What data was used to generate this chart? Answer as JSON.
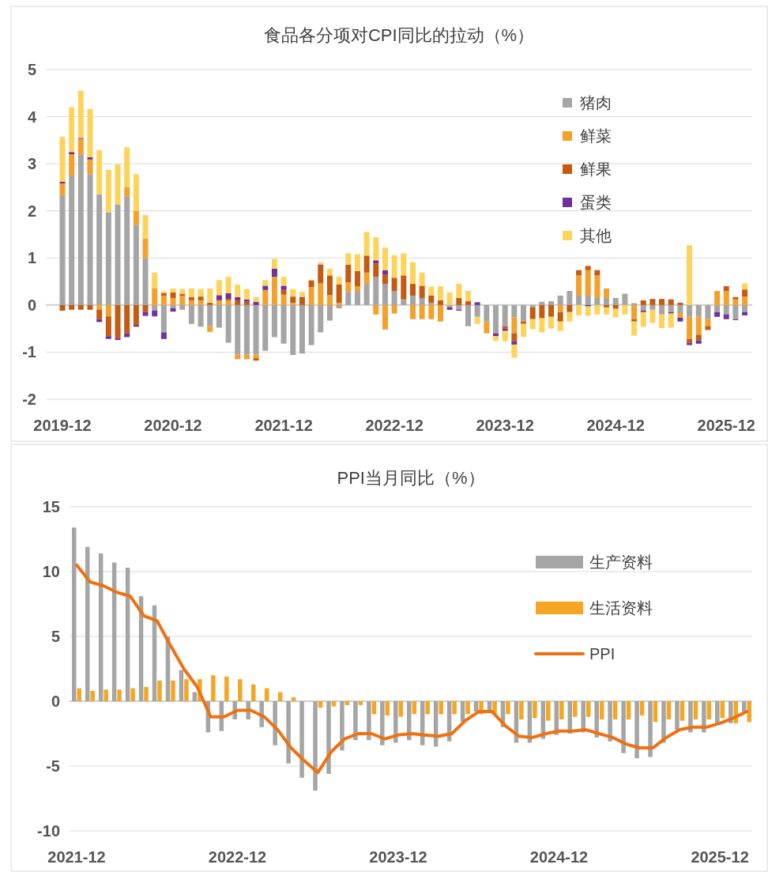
{
  "chart_data": [
    {
      "type": "bar",
      "title": "食品各分项对CPI同比的拉动（%）",
      "stacked": true,
      "grid": "y",
      "legend": "top right",
      "categories": [
        "2019-12",
        null,
        null,
        null,
        null,
        null,
        null,
        null,
        null,
        null,
        null,
        null,
        "2020-12",
        null,
        null,
        null,
        null,
        null,
        null,
        null,
        null,
        null,
        null,
        null,
        "2021-12",
        null,
        null,
        null,
        null,
        null,
        null,
        null,
        null,
        null,
        null,
        null,
        "2022-12",
        null,
        null,
        null,
        null,
        null,
        null,
        null,
        null,
        null,
        null,
        null,
        "2023-12",
        null,
        null,
        null,
        null,
        null,
        null,
        null,
        null,
        null,
        null,
        null,
        "2024-12",
        null,
        null,
        null,
        null,
        null,
        null,
        null,
        null,
        null,
        null,
        null,
        "2025-12",
        null,
        null
      ],
      "ylim": [
        -2,
        5
      ],
      "yticks": [
        -2,
        -1,
        0,
        1,
        2,
        3,
        4,
        5
      ],
      "series": [
        {
          "name": "猪肉",
          "color": "#a5a5a5",
          "values": [
            2.33,
            2.75,
            3.2,
            2.78,
            2.35,
            1.97,
            2.13,
            2.3,
            1.7,
            1.0,
            -0.12,
            -0.58,
            -0.07,
            -0.1,
            -0.4,
            -0.46,
            -0.45,
            -0.48,
            -0.8,
            -1.05,
            -1.05,
            -1.05,
            -0.97,
            -0.68,
            -0.82,
            -1.06,
            -1.03,
            -0.85,
            -0.58,
            -0.33,
            -0.07,
            0.28,
            0.3,
            0.45,
            0.6,
            0.45,
            0.3,
            0.12,
            0.2,
            0.15,
            0.05,
            0,
            -0.05,
            -0.1,
            -0.45,
            -0.25,
            -0.35,
            -0.6,
            -0.45,
            -0.26,
            -0.35,
            -0.05,
            0.07,
            0.08,
            0.2,
            0.3,
            0.2,
            0.2,
            0.15,
            0.15,
            0.15,
            0.24,
            0.04,
            -0.12,
            -0.1,
            -0.2,
            -0.15,
            -0.17,
            -0.25,
            -0.25,
            -0.3,
            -0.15,
            -0.2,
            -0.3,
            -0.15
          ]
        },
        {
          "name": "鲜菜",
          "color": "#f5a02a",
          "values": [
            0.25,
            0.45,
            0.33,
            0.31,
            -0.1,
            -0.24,
            0,
            0.2,
            0.3,
            0.41,
            0.35,
            0.2,
            0.15,
            0.2,
            0.1,
            0.1,
            -0.12,
            0.1,
            0.1,
            -0.1,
            -0.1,
            -0.08,
            0.32,
            0.6,
            0.22,
            0.05,
            0,
            0.38,
            0.46,
            0.21,
            0.05,
            0.2,
            0.1,
            0.24,
            -0.2,
            -0.52,
            -0.18,
            0,
            -0.3,
            -0.3,
            -0.3,
            -0.35,
            0,
            0,
            0,
            0,
            -0.25,
            0,
            0,
            -0.34,
            0,
            0,
            0,
            0,
            -0.15,
            0,
            0.43,
            0.54,
            0.48,
            0.2,
            0,
            0,
            -0.3,
            0,
            0,
            0,
            0,
            -0.1,
            -0.47,
            -0.38,
            -0.15,
            0.3,
            0.3,
            0.12,
            0.18
          ]
        },
        {
          "name": "鲜果",
          "color": "#c55a11",
          "values": [
            -0.12,
            -0.1,
            -0.1,
            -0.1,
            -0.2,
            -0.42,
            -0.7,
            -0.6,
            -0.42,
            -0.15,
            0,
            0.05,
            0.12,
            0.04,
            0.07,
            0.08,
            0.05,
            0,
            0.03,
            0.1,
            0.07,
            -0.05,
            0,
            0,
            0.1,
            0.13,
            0.15,
            0.14,
            0.37,
            0.42,
            0.39,
            0.38,
            0.32,
            0.36,
            0.28,
            0.2,
            0.28,
            0.51,
            0.25,
            0.26,
            0.15,
            0.1,
            0,
            0.15,
            0.08,
            0,
            0,
            0,
            -0.05,
            -0.17,
            -0.05,
            -0.25,
            -0.28,
            -0.25,
            -0.2,
            -0.15,
            0.11,
            0.09,
            0.11,
            -0.05,
            -0.08,
            0,
            -0.05,
            0.1,
            0.13,
            0.13,
            0.12,
            0.05,
            -0.08,
            -0.12,
            -0.08,
            0,
            0.1,
            0.05,
            0.15
          ]
        },
        {
          "name": "蛋类",
          "color": "#7030a0",
          "values": [
            0.04,
            0.05,
            0.02,
            0.05,
            -0.06,
            -0.06,
            -0.04,
            -0.08,
            -0.04,
            -0.08,
            -0.12,
            -0.14,
            -0.07,
            0,
            0,
            0,
            0,
            0.11,
            0.12,
            0.07,
            0.05,
            0.07,
            0.09,
            0.17,
            0.09,
            0,
            0.02,
            0,
            0.03,
            0,
            0,
            0,
            0,
            0,
            0.07,
            0.09,
            0,
            0,
            0,
            0,
            0,
            0,
            -0.05,
            -0.02,
            0,
            0.06,
            0,
            -0.06,
            -0.05,
            -0.07,
            0,
            0,
            0,
            0,
            0,
            0,
            0,
            -0.03,
            0,
            0,
            0,
            0,
            0,
            -0.03,
            0,
            0,
            -0.03,
            -0.08,
            -0.05,
            -0.07,
            0,
            -0.1,
            -0.1,
            -0.02,
            -0.07
          ]
        },
        {
          "name": "其他",
          "color": "#fdd35a",
          "values": [
            0.95,
            0.95,
            1.0,
            1.02,
            0.94,
            0.9,
            0.86,
            0.85,
            0.78,
            0.5,
            0.34,
            0.04,
            0.08,
            0.1,
            0.18,
            0.16,
            0.3,
            0.32,
            0.35,
            0.26,
            0.22,
            0.1,
            0.12,
            0.21,
            0.19,
            0.16,
            0.11,
            0.02,
            0.05,
            0.14,
            0.16,
            0.24,
            0.36,
            0.5,
            0.49,
            0.48,
            0.48,
            0.47,
            0.46,
            0.28,
            0.19,
            0.3,
            0.27,
            0.3,
            0.22,
            -0.15,
            0,
            -0.1,
            -0.22,
            -0.28,
            -0.28,
            -0.21,
            -0.3,
            -0.25,
            -0.2,
            -0.2,
            -0.22,
            -0.2,
            -0.2,
            -0.15,
            -0.18,
            -0.2,
            -0.3,
            -0.31,
            -0.28,
            -0.29,
            -0.3,
            0,
            1.27,
            0,
            0,
            0,
            0,
            0,
            0.13
          ]
        }
      ]
    },
    {
      "type": "bar",
      "title": "PPI当月同比（%）",
      "grid": "y",
      "legend": "top right",
      "categories": [
        "2021-12",
        null,
        null,
        null,
        null,
        null,
        null,
        null,
        null,
        null,
        null,
        null,
        "2022-12",
        null,
        null,
        null,
        null,
        null,
        null,
        null,
        null,
        null,
        null,
        null,
        "2023-12",
        null,
        null,
        null,
        null,
        null,
        null,
        null,
        null,
        null,
        null,
        null,
        "2024-12",
        null,
        null,
        null,
        null,
        null,
        null,
        null,
        null,
        null,
        null,
        null,
        "2025-12",
        null,
        null
      ],
      "ylim": [
        -10,
        15
      ],
      "yticks": [
        -10,
        -5,
        0,
        5,
        10,
        15
      ],
      "series": [
        {
          "name": "生产资料",
          "color": "#a5a5a5",
          "values": [
            13.4,
            11.9,
            11.4,
            10.7,
            10.3,
            8.1,
            7.4,
            5.0,
            2.4,
            0.7,
            -2.4,
            -2.3,
            -1.4,
            -1.4,
            -2.0,
            -3.4,
            -4.8,
            -5.9,
            -6.9,
            -5.6,
            -3.8,
            -3.0,
            -3.0,
            -3.4,
            -3.2,
            -3.0,
            -3.4,
            -3.5,
            -3.1,
            -1.6,
            -0.8,
            -0.8,
            -2.0,
            -3.2,
            -3.2,
            -2.9,
            -2.6,
            -2.5,
            -2.4,
            -2.8,
            -3.1,
            -4.0,
            -4.4,
            -4.3,
            -3.2,
            -2.2,
            -2.4,
            -2.4,
            -1.7,
            -1.7,
            -0.8
          ]
        },
        {
          "name": "生活资料",
          "color": "#f5a623",
          "values": [
            1.0,
            0.8,
            0.9,
            0.9,
            1.0,
            1.1,
            1.6,
            1.6,
            1.7,
            1.7,
            2.0,
            1.9,
            1.7,
            1.3,
            1.0,
            0.7,
            0.3,
            0.0,
            -0.5,
            -0.4,
            -0.3,
            -0.3,
            -1.0,
            -1.1,
            -1.2,
            -1.0,
            -1.0,
            -1.0,
            -1.0,
            -1.0,
            -1.0,
            -1.0,
            -1.0,
            -1.4,
            -1.3,
            -1.5,
            -1.4,
            -1.2,
            -1.2,
            -1.4,
            -1.4,
            -1.4,
            -1.1,
            -1.6,
            -1.4,
            -1.5,
            -1.4,
            -1.4,
            -1.3,
            -1.7,
            -1.6
          ]
        },
        {
          "name": "PPI",
          "type": "line",
          "color": "#f07010",
          "values": [
            10.5,
            9.2,
            8.9,
            8.4,
            8.1,
            6.6,
            6.2,
            4.3,
            2.5,
            1.1,
            -1.2,
            -1.2,
            -0.7,
            -0.7,
            -1.2,
            -2.2,
            -3.6,
            -4.6,
            -5.5,
            -3.9,
            -2.9,
            -2.5,
            -2.5,
            -2.9,
            -2.6,
            -2.5,
            -2.6,
            -2.7,
            -2.5,
            -1.5,
            -0.8,
            -0.8,
            -1.9,
            -2.7,
            -2.8,
            -2.5,
            -2.3,
            -2.3,
            -2.2,
            -2.5,
            -2.8,
            -3.3,
            -3.6,
            -3.6,
            -2.8,
            -2.2,
            -2.0,
            -2.0,
            -1.7,
            -1.3,
            -0.8
          ]
        }
      ]
    }
  ]
}
